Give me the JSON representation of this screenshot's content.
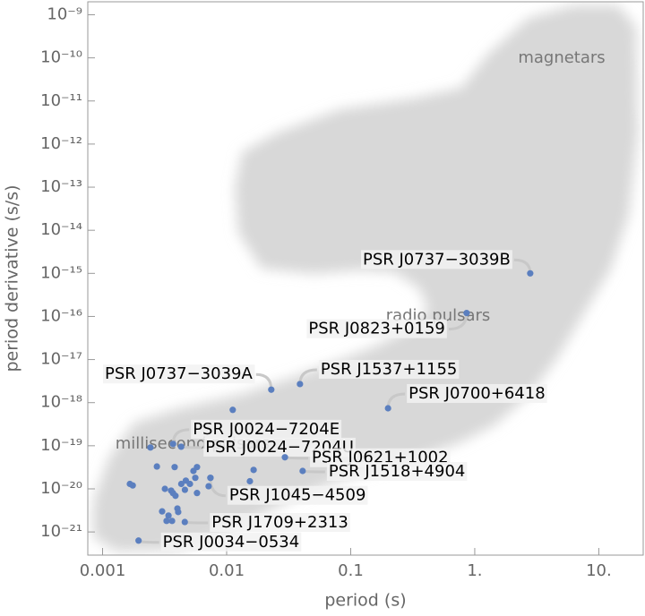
{
  "chart_data": {
    "type": "scatter",
    "x_label": "period (s)",
    "y_label": "period derivative (s/s)",
    "log_x": true,
    "log_y": true,
    "xlim": [
      0.00076,
      22.8
    ],
    "ylim": [
      2.9e-22,
      2e-09
    ],
    "xticks": [
      0.001,
      0.01,
      0.1,
      {
        "value": 1,
        "label": "1."
      },
      {
        "value": 10,
        "label": "10."
      }
    ],
    "yticks": [
      {
        "value": 1e-09,
        "label": "10⁻⁹"
      },
      {
        "value": 1e-10,
        "label": "10⁻¹⁰"
      },
      {
        "value": 1e-11,
        "label": "10⁻¹¹"
      },
      {
        "value": 1e-12,
        "label": "10⁻¹²"
      },
      {
        "value": 1e-13,
        "label": "10⁻¹³"
      },
      {
        "value": 1e-14,
        "label": "10⁻¹⁴"
      },
      {
        "value": 1e-15,
        "label": "10⁻¹⁵"
      },
      {
        "value": 1e-16,
        "label": "10⁻¹⁶"
      },
      {
        "value": 1e-17,
        "label": "10⁻¹⁷"
      },
      {
        "value": 1e-18,
        "label": "10⁻¹⁸"
      },
      {
        "value": 1e-19,
        "label": "10⁻¹⁹"
      },
      {
        "value": 1e-20,
        "label": "10⁻²⁰"
      },
      {
        "value": 1e-21,
        "label": "10⁻²¹"
      }
    ],
    "annotations": [
      "magnetars",
      "radio pulsars",
      "millisecond pulsars"
    ],
    "color": "#5b7fbf",
    "x": [
      2.8,
      0.86,
      0.0229,
      0.039,
      0.2,
      0.0037,
      0.0043,
      0.0295,
      0.041,
      0.0074,
      0.0046,
      0.00195,
      0.0112,
      0.00243,
      0.00274,
      0.00381,
      0.00166,
      0.00175,
      0.00318,
      0.00357,
      0.00387,
      0.00369,
      0.00469,
      0.00431,
      0.00506,
      0.00559,
      0.00577,
      0.0054,
      0.00461,
      0.00577,
      0.00741,
      0.00716,
      0.0165,
      0.0154,
      0.00302,
      0.00401,
      0.0034,
      0.00328,
      0.00363,
      0.00407
    ],
    "y": [
      1e-15,
      1.2e-16,
      2e-18,
      2.7e-18,
      7.4e-19,
      1.1e-19,
      9.5e-20,
      5.4e-20,
      2.6e-20,
      1.8e-20,
      1.7e-21,
      6.3e-22,
      6.8e-19,
      9.1e-20,
      3.3e-20,
      3.2e-20,
      1.3e-20,
      1.2e-20,
      1e-20,
      9.1e-21,
      6.9e-21,
      8e-21,
      1.55e-20,
      1.3e-20,
      1.3e-20,
      1.8e-20,
      3.2e-20,
      2.6e-20,
      9.5e-21,
      8e-21,
      1.8e-20,
      1.15e-20,
      2.75e-20,
      1.5e-20,
      3e-21,
      3.5e-21,
      2.4e-21,
      1.8e-21,
      1.8e-21,
      2.9e-21
    ],
    "labels": [
      "PSR J0737−3039B",
      "PSR J0823+0159",
      "PSR J0737−3039A",
      "PSR J1537+1155",
      "PSR J0700+6418",
      "PSR J0024−7204E",
      "PSR J0024−7204U",
      "PSR J0621+1002",
      "PSR J1518+4904",
      "PSR J1045−4509",
      "PSR J1709+2313",
      "PSR J0034−0534",
      null,
      null,
      null,
      null,
      null,
      null,
      null,
      null,
      null,
      null,
      null,
      null,
      null,
      null,
      null,
      null,
      null,
      null,
      null,
      null,
      null,
      null,
      null,
      null,
      null,
      null,
      null,
      null
    ]
  }
}
